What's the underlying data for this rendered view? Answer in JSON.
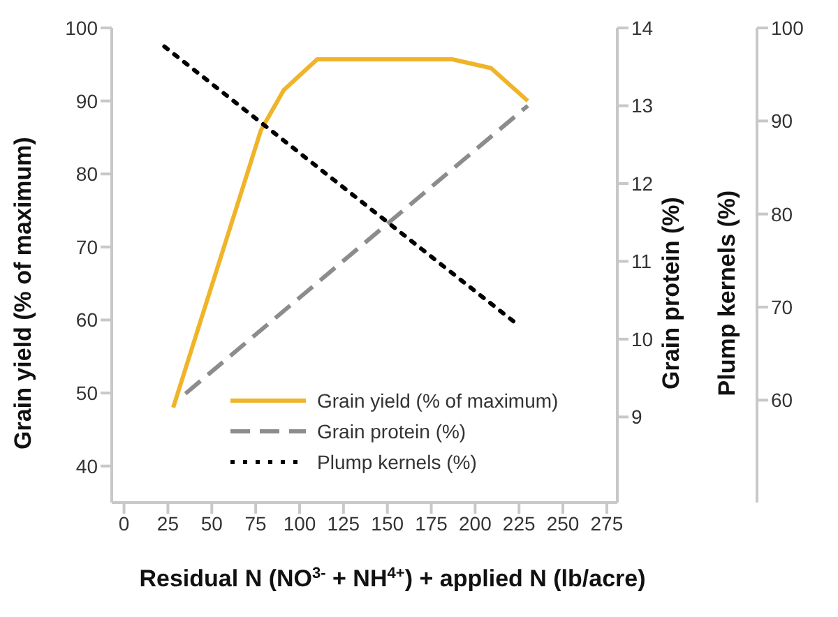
{
  "chart_data": {
    "type": "line",
    "xlabel": "Residual N (NO$^{3-}$ + NH$^{4+}$) + applied N (lb/acre)",
    "ylabel": "Grain yield (% of maximum)",
    "y2label": "Grain protein (%)",
    "y3label": "Plump kernels (%)",
    "xlim": [
      -7,
      281
    ],
    "xticks": [
      0,
      25,
      50,
      75,
      100,
      125,
      150,
      175,
      200,
      225,
      250,
      275
    ],
    "ylim": [
      35,
      100
    ],
    "yticks": [
      40,
      50,
      60,
      70,
      80,
      90,
      100
    ],
    "y2lim": [
      7.9,
      14
    ],
    "y2ticks": [
      9,
      10,
      11,
      12,
      13,
      14
    ],
    "y3lim": [
      49,
      100
    ],
    "y3ticks": [
      60,
      70,
      80,
      90,
      100
    ],
    "legend": "bottom",
    "grid": false,
    "marker": "none",
    "series": [
      {
        "name": "Grain yield (% of maximum)",
        "color": "#f0b429",
        "line_style": "solid",
        "x": [
          28,
          78,
          91,
          110,
          187,
          209,
          230
        ],
        "values": [
          48,
          86,
          91.5,
          95.7,
          95.7,
          94.5,
          90
        ]
      },
      {
        "name": "Grain protein (%)",
        "color": "#8c8c8c",
        "line_style": "dashed",
        "axis": "y2",
        "x": [
          35,
          230
        ],
        "values": [
          9.3,
          13
        ]
      },
      {
        "name": "Plump kernels (%)",
        "color": "#000000",
        "line_style": "dotted",
        "axis": "y3",
        "x": [
          23,
          225
        ],
        "values": [
          98,
          68
        ]
      }
    ]
  }
}
